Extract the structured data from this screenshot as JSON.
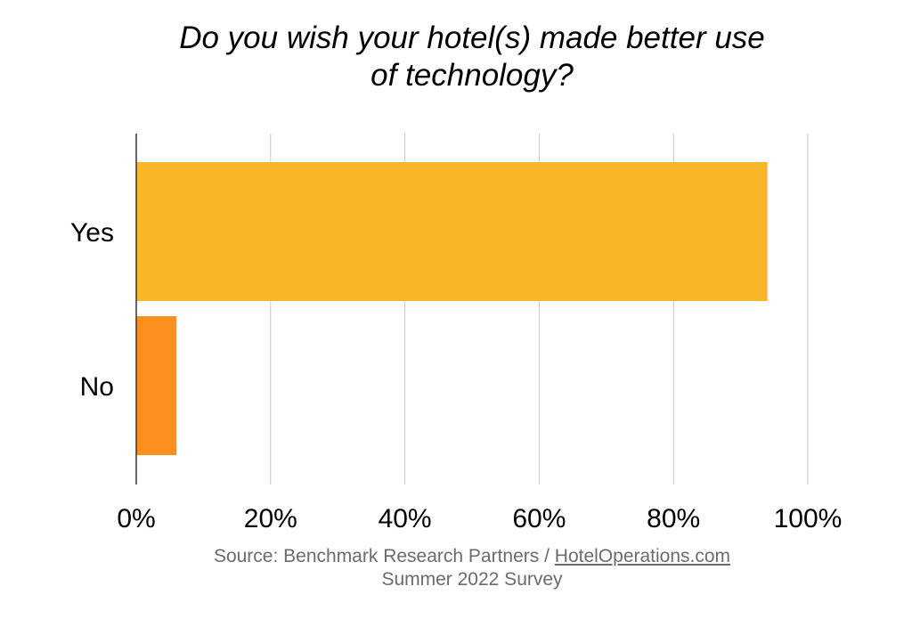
{
  "title": {
    "line1": "Do you wish your hotel(s) made better use",
    "line2": "of technology?"
  },
  "chart_data": {
    "type": "bar",
    "orientation": "horizontal",
    "categories": [
      "Yes",
      "No"
    ],
    "values": [
      94,
      6
    ],
    "colors": [
      "#F9B629",
      "#FD8F1F"
    ],
    "xlim": [
      0,
      100
    ],
    "xticks": [
      "0%",
      "20%",
      "40%",
      "60%",
      "80%",
      "100%"
    ],
    "grid": true
  },
  "source": {
    "prefix": "Source: Benchmark Research Partners / ",
    "link": "HotelOperations.com",
    "line2": "Summer 2022 Survey"
  }
}
